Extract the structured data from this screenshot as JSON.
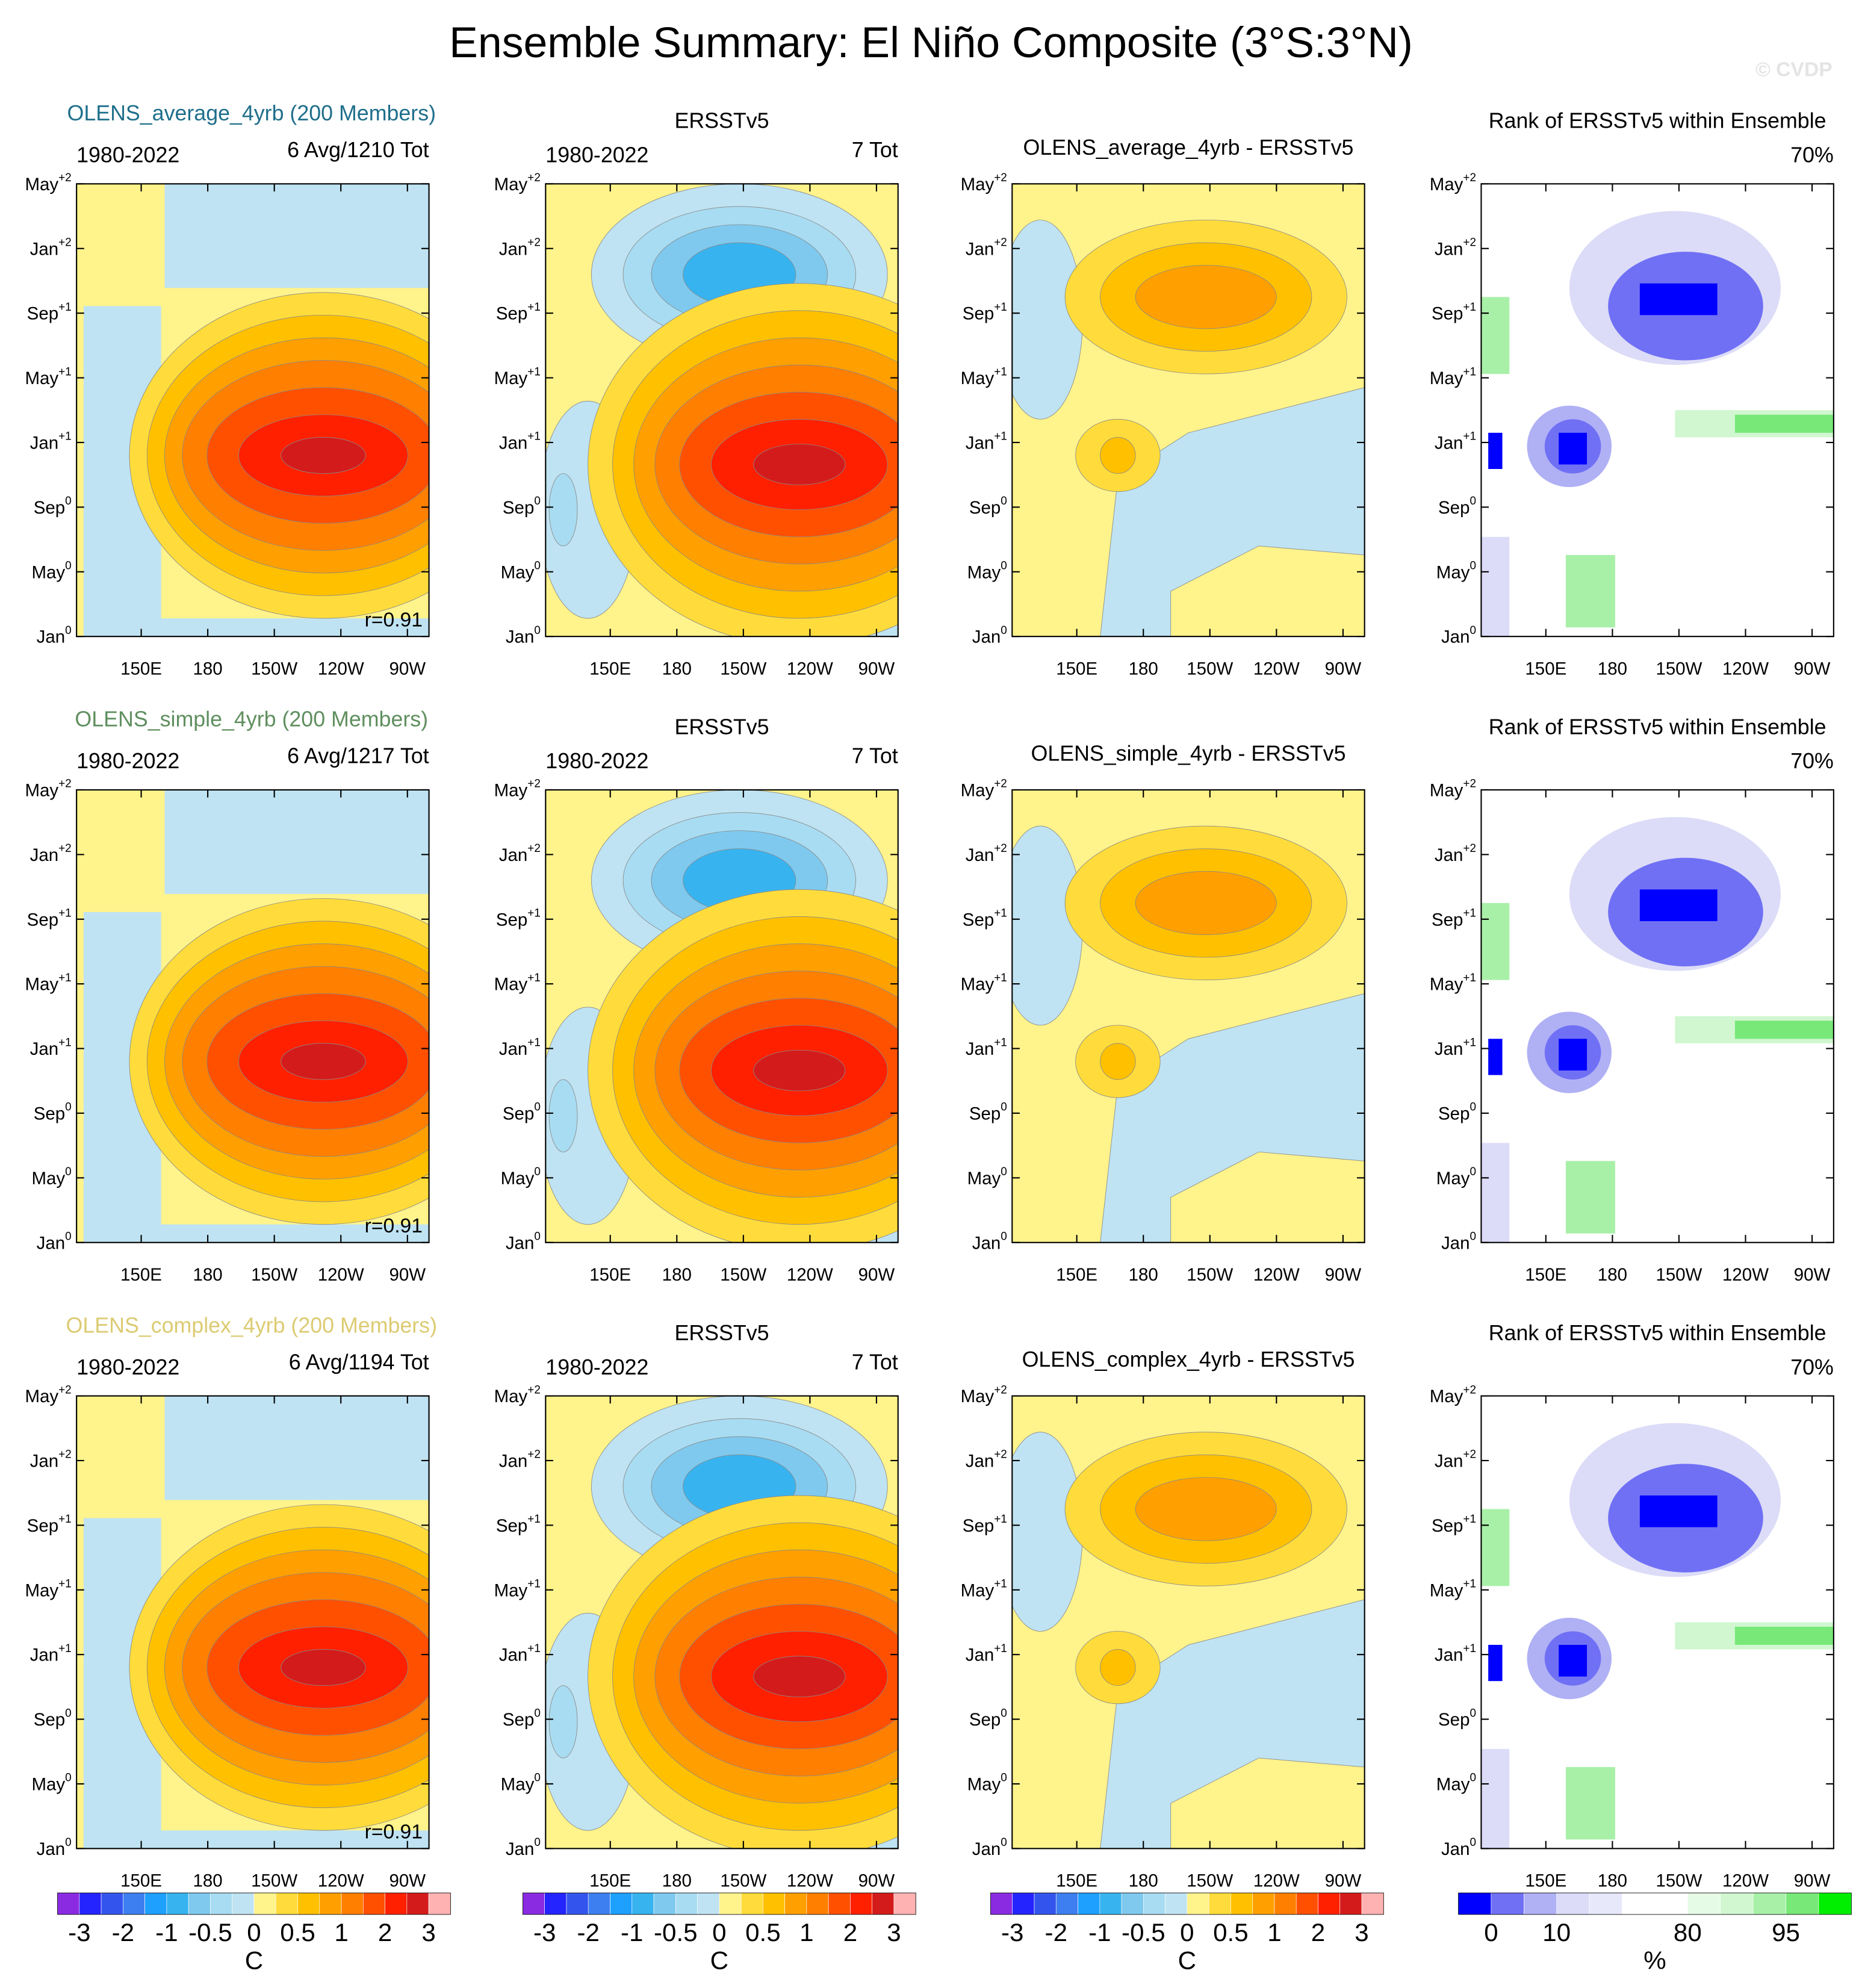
{
  "title": "Ensemble Summary: El Niño Composite (3°S:3°N)",
  "watermark": "© CVDP",
  "y_axis_labels": [
    {
      "month": "Jan",
      "sup": "0"
    },
    {
      "month": "May",
      "sup": "0"
    },
    {
      "month": "Sep",
      "sup": "0"
    },
    {
      "month": "Jan",
      "sup": "+1"
    },
    {
      "month": "May",
      "sup": "+1"
    },
    {
      "month": "Sep",
      "sup": "+1"
    },
    {
      "month": "Jan",
      "sup": "+2"
    },
    {
      "month": "May",
      "sup": "+2"
    }
  ],
  "x_axis_labels": [
    "150E",
    "180",
    "150W",
    "120W",
    "90W"
  ],
  "rows": [
    {
      "label": "OLENS_average_4yrb (200 Members)",
      "label_color": "#1f6f8b",
      "panels": [
        {
          "left": "1980-2022",
          "right": "6 Avg/1210 Tot",
          "note": "r=0.91"
        },
        {
          "title": "ERSSTv5",
          "left": "1980-2022",
          "right": "7 Tot"
        },
        {
          "title": "OLENS_average_4yrb - ERSSTv5"
        },
        {
          "title": "Rank of ERSSTv5 within Ensemble",
          "right": "70%"
        }
      ]
    },
    {
      "label": "OLENS_simple_4yrb (200 Members)",
      "label_color": "#5f8f5f",
      "panels": [
        {
          "left": "1980-2022",
          "right": "6 Avg/1217 Tot",
          "note": "r=0.91"
        },
        {
          "title": "ERSSTv5",
          "left": "1980-2022",
          "right": "7 Tot"
        },
        {
          "title": "OLENS_simple_4yrb - ERSSTv5"
        },
        {
          "title": "Rank of ERSSTv5 within Ensemble",
          "right": "70%"
        }
      ]
    },
    {
      "label": "OLENS_complex_4yrb (200 Members)",
      "label_color": "#dccb72",
      "panels": [
        {
          "left": "1980-2022",
          "right": "6 Avg/1194 Tot",
          "note": "r=0.91"
        },
        {
          "title": "ERSSTv5",
          "left": "1980-2022",
          "right": "7 Tot"
        },
        {
          "title": "OLENS_complex_4yrb - ERSSTv5"
        },
        {
          "title": "Rank of ERSSTv5 within Ensemble",
          "right": "70%"
        }
      ]
    }
  ],
  "temperature_colorbar": {
    "colors": [
      "#8a2be2",
      "#2424ff",
      "#3355ee",
      "#3d7ff0",
      "#1ea0ff",
      "#37b4f0",
      "#7fc9ee",
      "#a8dcf2",
      "#bfe3f2",
      "#fff38c",
      "#ffdc3c",
      "#ffc000",
      "#ffa000",
      "#ff7f00",
      "#ff5000",
      "#ff2000",
      "#d41b1b",
      "#ffb2b2"
    ],
    "labels": [
      -3,
      -2,
      -1,
      -0.5,
      0,
      0.5,
      1,
      2,
      3
    ],
    "unit": "C"
  },
  "rank_colorbar": {
    "colors": [
      "#0000ff",
      "#7070f5",
      "#b0b0f5",
      "#dcdcf8",
      "#e8e8fb",
      "#ffffff",
      "#ffffff",
      "#e6fbe6",
      "#d0f7d0",
      "#a8f0a8",
      "#78e878",
      "#00ee00"
    ],
    "labels": [
      0,
      10,
      80,
      95
    ],
    "unit": "%"
  }
}
